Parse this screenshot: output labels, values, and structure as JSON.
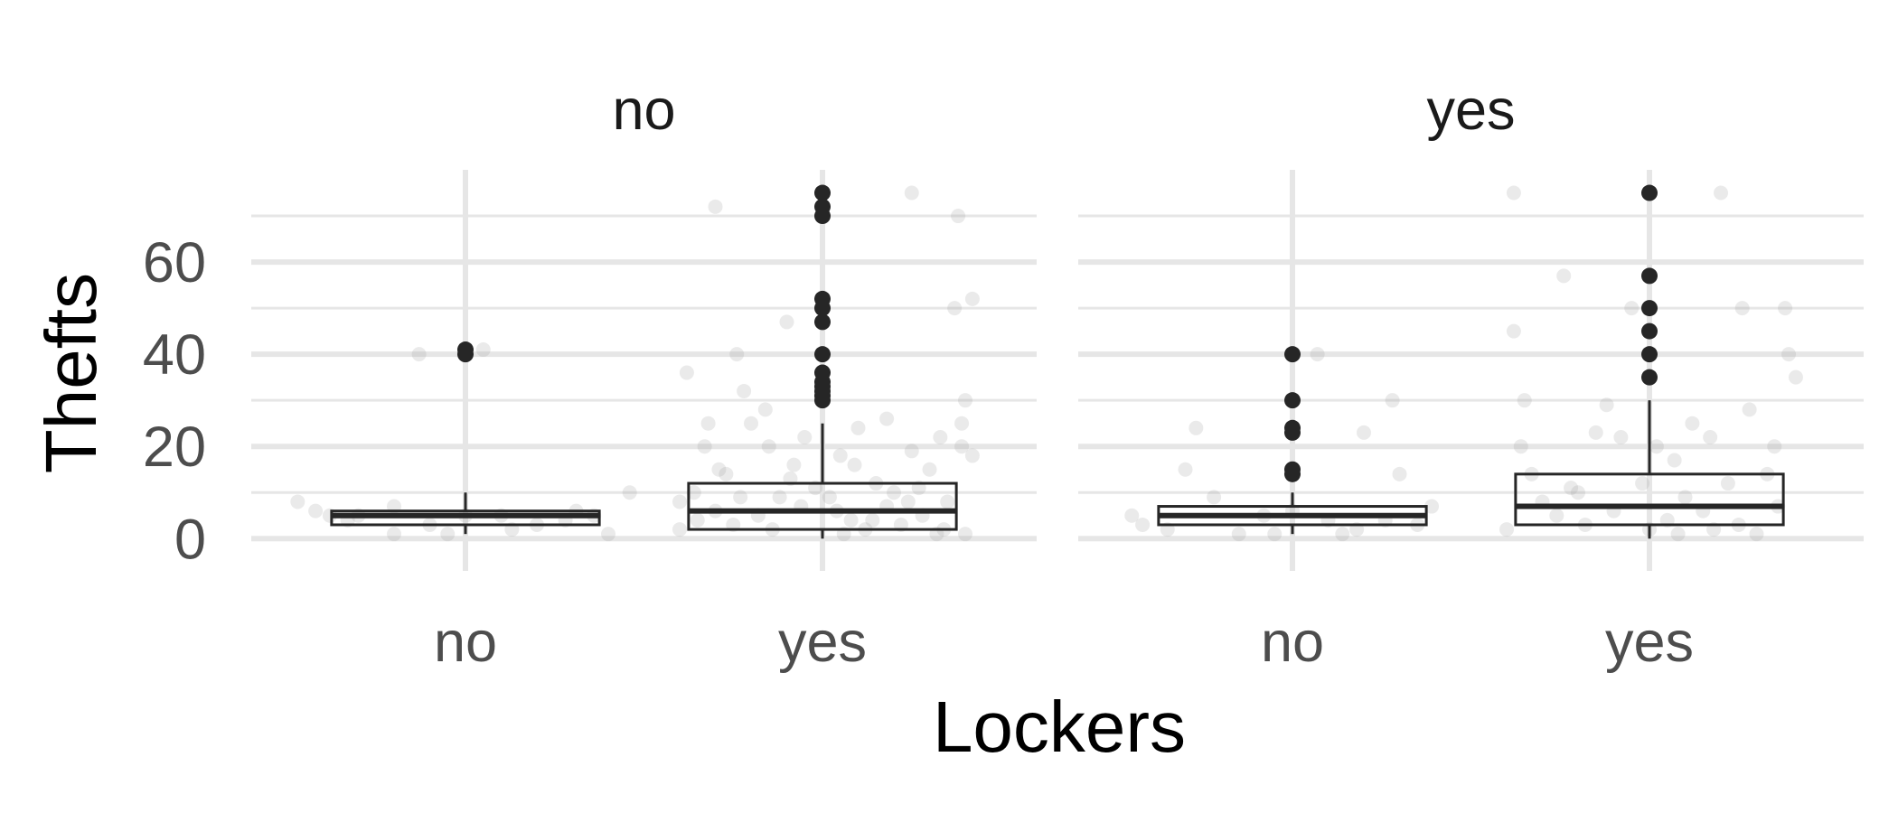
{
  "chart_data": {
    "type": "boxplot",
    "xlabel": "Lockers",
    "ylabel": "Thefts",
    "categories": [
      "no",
      "yes"
    ],
    "ylim": [
      -7,
      80
    ],
    "y_ticks": [
      0,
      20,
      40,
      60
    ],
    "y_tick_labels": [
      "0",
      "20",
      "40",
      "60"
    ],
    "grid": true,
    "colors": {
      "box_line": "#262626",
      "grid": "#e6e6e6",
      "jitter": "#9e9e9e",
      "outlier": "#262626",
      "tick_text": "#4d4d4d"
    },
    "panels": [
      {
        "facet": "no",
        "groups": [
          {
            "category": "no",
            "stats": {
              "min": 1,
              "q1": 3,
              "median": 5,
              "q3": 6,
              "max": 10
            },
            "outliers": [
              40,
              41
            ],
            "jitter": [
              [
                -0.47,
                8
              ],
              [
                -0.42,
                6
              ],
              [
                -0.38,
                5
              ],
              [
                -0.33,
                4
              ],
              [
                -0.2,
                7
              ],
              [
                -0.2,
                1
              ],
              [
                -0.13,
                40
              ],
              [
                -0.05,
                1
              ],
              [
                0.05,
                41
              ],
              [
                0.1,
                5
              ],
              [
                0.13,
                2
              ],
              [
                0.28,
                4
              ],
              [
                0.31,
                6
              ],
              [
                0.36,
                5
              ],
              [
                0.4,
                1
              ],
              [
                0.46,
                10
              ],
              [
                -0.1,
                3
              ],
              [
                0.0,
                5
              ],
              [
                0.2,
                3
              ],
              [
                -0.3,
                5
              ]
            ]
          },
          {
            "category": "yes",
            "stats": {
              "min": 0,
              "q1": 2,
              "median": 6,
              "q3": 12,
              "max": 25
            },
            "outliers": [
              30,
              31,
              32,
              33,
              34,
              36,
              40,
              47,
              50,
              52,
              70,
              72,
              75
            ],
            "jitter": [
              [
                -0.3,
                72
              ],
              [
                -0.38,
                36
              ],
              [
                -0.24,
                40
              ],
              [
                -0.22,
                32
              ],
              [
                -0.32,
                25
              ],
              [
                -0.33,
                20
              ],
              [
                -0.29,
                15
              ],
              [
                -0.36,
                10
              ],
              [
                -0.4,
                8
              ],
              [
                -0.27,
                14
              ],
              [
                -0.2,
                25
              ],
              [
                -0.15,
                20
              ],
              [
                -0.1,
                47
              ],
              [
                -0.05,
                22
              ],
              [
                0.0,
                33
              ],
              [
                0.05,
                18
              ],
              [
                0.1,
                24
              ],
              [
                0.15,
                12
              ],
              [
                0.2,
                10
              ],
              [
                0.25,
                19
              ],
              [
                0.3,
                15
              ],
              [
                0.35,
                8
              ],
              [
                0.25,
                75
              ],
              [
                0.38,
                70
              ],
              [
                0.42,
                52
              ],
              [
                0.37,
                50
              ],
              [
                0.39,
                25
              ],
              [
                0.33,
                22
              ],
              [
                0.39,
                20
              ],
              [
                0.4,
                30
              ],
              [
                0.42,
                18
              ],
              [
                -0.12,
                9
              ],
              [
                -0.08,
                16
              ],
              [
                -0.02,
                11
              ],
              [
                0.04,
                6
              ],
              [
                0.08,
                4
              ],
              [
                0.12,
                2
              ],
              [
                0.18,
                7
              ],
              [
                0.22,
                3
              ],
              [
                0.28,
                5
              ],
              [
                0.32,
                1
              ],
              [
                -0.35,
                4
              ],
              [
                -0.3,
                6
              ],
              [
                -0.25,
                3
              ],
              [
                -0.18,
                5
              ],
              [
                -0.14,
                2
              ],
              [
                -0.06,
                7
              ],
              [
                0.02,
                9
              ],
              [
                0.06,
                1
              ],
              [
                0.14,
                4
              ],
              [
                0.24,
                8
              ],
              [
                0.34,
                2
              ],
              [
                0.4,
                1
              ],
              [
                -0.4,
                2
              ],
              [
                -0.16,
                28
              ],
              [
                0.18,
                26
              ],
              [
                -0.23,
                9
              ],
              [
                0.27,
                11
              ],
              [
                -0.09,
                13
              ],
              [
                0.09,
                16
              ]
            ]
          }
        ]
      },
      {
        "facet": "yes",
        "groups": [
          {
            "category": "no",
            "stats": {
              "min": 1,
              "q1": 3,
              "median": 5,
              "q3": 7,
              "max": 10
            },
            "outliers": [
              14,
              15,
              23,
              24,
              30,
              40
            ],
            "jitter": [
              [
                -0.45,
                5
              ],
              [
                -0.42,
                3
              ],
              [
                -0.35,
                2
              ],
              [
                -0.3,
                15
              ],
              [
                -0.27,
                24
              ],
              [
                -0.22,
                9
              ],
              [
                -0.15,
                1
              ],
              [
                -0.08,
                5
              ],
              [
                0.07,
                40
              ],
              [
                0.1,
                4
              ],
              [
                0.18,
                2
              ],
              [
                0.2,
                23
              ],
              [
                0.26,
                4
              ],
              [
                0.28,
                30
              ],
              [
                0.3,
                14
              ],
              [
                0.35,
                3
              ],
              [
                0.39,
                7
              ],
              [
                0.0,
                6
              ],
              [
                -0.05,
                1
              ],
              [
                0.14,
                1
              ]
            ]
          },
          {
            "category": "yes",
            "stats": {
              "min": 0,
              "q1": 3,
              "median": 7,
              "q3": 14,
              "max": 30
            },
            "outliers": [
              35,
              40,
              45,
              50,
              57,
              75
            ],
            "jitter": [
              [
                -0.38,
                75
              ],
              [
                -0.38,
                45
              ],
              [
                -0.35,
                30
              ],
              [
                -0.36,
                20
              ],
              [
                -0.33,
                14
              ],
              [
                -0.24,
                57
              ],
              [
                -0.2,
                10
              ],
              [
                -0.15,
                23
              ],
              [
                -0.12,
                29
              ],
              [
                -0.08,
                22
              ],
              [
                -0.05,
                50
              ],
              [
                0.02,
                20
              ],
              [
                0.07,
                17
              ],
              [
                0.12,
                25
              ],
              [
                0.17,
                22
              ],
              [
                0.2,
                75
              ],
              [
                0.26,
                50
              ],
              [
                0.28,
                28
              ],
              [
                0.35,
                20
              ],
              [
                0.38,
                50
              ],
              [
                0.39,
                40
              ],
              [
                0.41,
                35
              ],
              [
                0.33,
                14
              ],
              [
                0.22,
                12
              ],
              [
                -0.3,
                8
              ],
              [
                -0.26,
                5
              ],
              [
                -0.18,
                3
              ],
              [
                -0.1,
                6
              ],
              [
                0.0,
                2
              ],
              [
                0.05,
                4
              ],
              [
                0.1,
                9
              ],
              [
                0.15,
                6
              ],
              [
                0.25,
                3
              ],
              [
                0.3,
                1
              ],
              [
                0.36,
                7
              ],
              [
                -0.4,
                2
              ],
              [
                -0.22,
                11
              ],
              [
                0.18,
                2
              ],
              [
                -0.02,
                12
              ],
              [
                0.08,
                1
              ]
            ]
          }
        ]
      }
    ]
  }
}
